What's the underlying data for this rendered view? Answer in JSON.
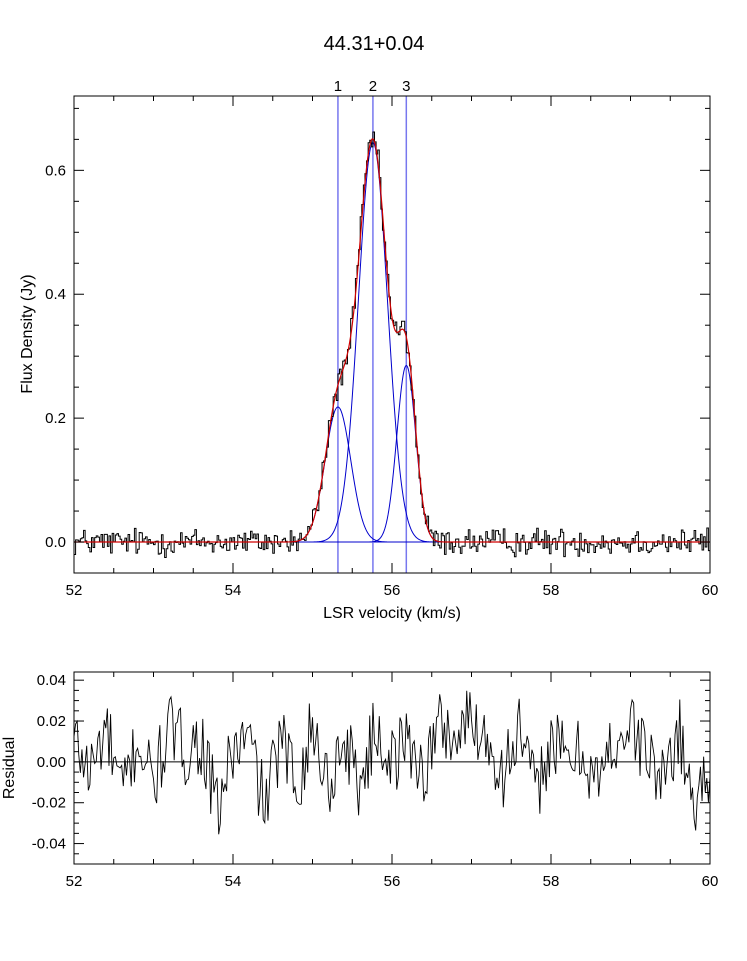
{
  "chart_data": [
    {
      "type": "line",
      "title": "44.31+0.04",
      "xlabel": "LSR velocity (km/s)",
      "ylabel": "Flux Density (Jy)",
      "xlim": [
        52,
        60
      ],
      "ylim": [
        -0.05,
        0.72
      ],
      "x_ticks": [
        52,
        54,
        56,
        58,
        60
      ],
      "y_ticks": [
        0.0,
        0.2,
        0.4,
        0.6
      ],
      "x_tick_labels": [
        "52",
        "54",
        "56",
        "58",
        "60"
      ],
      "y_tick_labels": [
        "0.0",
        "0.2",
        "0.4",
        "0.6"
      ],
      "grid": false,
      "components": [
        {
          "label": "1",
          "center": 55.32,
          "amplitude": 0.218,
          "fwhm": 0.38,
          "color": "#0000cc"
        },
        {
          "label": "2",
          "center": 55.76,
          "amplitude": 0.645,
          "fwhm": 0.43,
          "color": "#0000cc"
        },
        {
          "label": "3",
          "center": 56.18,
          "amplitude": 0.285,
          "fwhm": 0.28,
          "color": "#0000cc"
        }
      ],
      "component_marker_color": "#7777ee",
      "fit_color": "#d00000",
      "data_color": "#000000",
      "series": [
        {
          "x": [
            52.0,
            52.5,
            53.0,
            53.5,
            54.0,
            54.5,
            55.0,
            55.2,
            55.3,
            55.5,
            55.6,
            55.76,
            55.9,
            56.0,
            56.18,
            56.3,
            56.5,
            57.0,
            58.0,
            59.0,
            60.0
          ],
          "values": [
            0.0,
            0.01,
            0.0,
            -0.01,
            0.0,
            0.0,
            0.04,
            0.17,
            0.22,
            0.36,
            0.52,
            0.66,
            0.48,
            0.31,
            0.33,
            0.17,
            0.02,
            0.0,
            0.0,
            0.0,
            0.0
          ]
        }
      ]
    },
    {
      "type": "line",
      "title": "",
      "xlabel": "",
      "ylabel": "Residual",
      "xlim": [
        52,
        60
      ],
      "ylim": [
        -0.05,
        0.044
      ],
      "x_ticks": [
        52,
        54,
        56,
        58,
        60
      ],
      "y_ticks": [
        -0.04,
        -0.02,
        0.0,
        0.02,
        0.04
      ],
      "x_tick_labels": [
        "52",
        "54",
        "56",
        "58",
        "60"
      ],
      "y_tick_labels": [
        "-0.04",
        "-0.02",
        "0.00",
        "0.02",
        "0.04"
      ],
      "grid": false,
      "zero_line": true,
      "series": [
        {
          "x": [
            52.0,
            52.2,
            52.4,
            52.6,
            52.8,
            53.0,
            53.2,
            53.4,
            53.6,
            53.8,
            54.0,
            54.2,
            54.4,
            54.6,
            54.8,
            55.0,
            55.2,
            55.4,
            55.6,
            55.8,
            56.0,
            56.2,
            56.4,
            56.6,
            56.8,
            57.0,
            57.2,
            57.4,
            57.6,
            57.8,
            58.0,
            58.2,
            58.4,
            58.6,
            58.8,
            59.0,
            59.2,
            59.4,
            59.6,
            59.8,
            60.0
          ],
          "values": [
            0.02,
            -0.01,
            0.03,
            -0.03,
            0.02,
            -0.02,
            0.03,
            0.01,
            0.02,
            -0.045,
            0.01,
            0.02,
            -0.04,
            0.02,
            -0.02,
            0.03,
            -0.02,
            0.02,
            -0.02,
            0.03,
            0.0,
            0.02,
            -0.01,
            0.035,
            0.02,
            0.04,
            0.02,
            -0.01,
            0.03,
            -0.03,
            0.02,
            0.0,
            0.01,
            -0.02,
            0.02,
            0.03,
            0.01,
            -0.02,
            0.03,
            -0.04,
            0.0
          ]
        }
      ]
    }
  ]
}
